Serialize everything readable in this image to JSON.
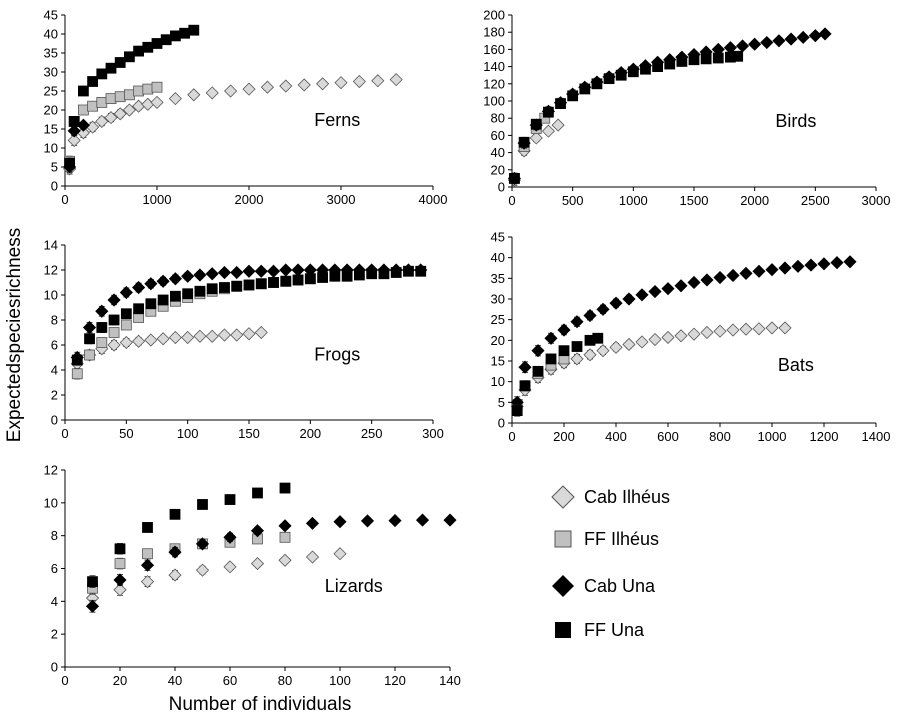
{
  "figure": {
    "ylabel": "Expectedspeciesrichness",
    "xlabel": "Number of individuals"
  },
  "legend": [
    {
      "name": "Cab Ilhéus",
      "marker": "diamond",
      "fill": "#d9d9d9",
      "stroke": "#555555"
    },
    {
      "name": "FF Ilhéus",
      "marker": "square",
      "fill": "#c0c0c0",
      "stroke": "#555555"
    },
    {
      "name": "Cab Una",
      "marker": "diamond",
      "fill": "#000000",
      "stroke": "#000000"
    },
    {
      "name": "FF Una",
      "marker": "square",
      "fill": "#000000",
      "stroke": "#000000"
    }
  ],
  "chart_data": [
    {
      "type": "scatter",
      "panel_label": "Ferns",
      "xlim": [
        0,
        4000
      ],
      "ylim": [
        0,
        45
      ],
      "xticks": [
        0,
        1000,
        2000,
        3000,
        4000
      ],
      "yticks": [
        0,
        5,
        10,
        15,
        20,
        25,
        30,
        35,
        40,
        45
      ],
      "series": [
        {
          "name": "Cab Ilhéus",
          "x": [
            50,
            100,
            200,
            300,
            400,
            500,
            600,
            700,
            800,
            900,
            1000,
            1200,
            1400,
            1600,
            1800,
            2000,
            2200,
            2400,
            2600,
            2800,
            3000,
            3200,
            3400,
            3600
          ],
          "y": [
            4.5,
            12,
            14,
            15.5,
            17,
            18,
            19,
            20,
            21,
            21.5,
            22,
            23,
            24,
            24.5,
            25,
            25.5,
            26,
            26.3,
            26.6,
            26.9,
            27.2,
            27.5,
            27.7,
            28
          ]
        },
        {
          "name": "FF Ilhéus",
          "x": [
            50,
            100,
            200,
            300,
            400,
            500,
            600,
            700,
            800,
            900,
            1000
          ],
          "y": [
            6.5,
            17,
            20,
            21,
            22,
            23,
            23.5,
            24,
            25,
            25.5,
            26
          ]
        },
        {
          "name": "Cab Una",
          "x": [
            50,
            100,
            200
          ],
          "y": [
            5,
            14.5,
            16
          ]
        },
        {
          "name": "FF Una",
          "x": [
            50,
            100,
            200,
            300,
            400,
            500,
            600,
            700,
            800,
            900,
            1000,
            1100,
            1200,
            1300,
            1400
          ],
          "y": [
            6,
            17,
            25,
            27.5,
            29.5,
            31,
            32.5,
            34,
            35.5,
            36.5,
            37.5,
            38.5,
            39.5,
            40.2,
            41
          ]
        }
      ]
    },
    {
      "type": "scatter",
      "panel_label": "Birds",
      "xlim": [
        0,
        3000
      ],
      "ylim": [
        0,
        200
      ],
      "xticks": [
        0,
        500,
        1000,
        1500,
        2000,
        2500,
        3000
      ],
      "yticks": [
        0,
        20,
        40,
        60,
        80,
        100,
        120,
        140,
        160,
        180,
        200
      ],
      "series": [
        {
          "name": "Cab Ilhéus",
          "x": [
            20,
            100,
            200,
            300,
            380
          ],
          "y": [
            8,
            42,
            57,
            65,
            72
          ]
        },
        {
          "name": "FF Ilhéus",
          "x": [
            20,
            100,
            200,
            270
          ],
          "y": [
            10,
            47,
            68,
            80
          ]
        },
        {
          "name": "Cab Una",
          "x": [
            20,
            100,
            200,
            300,
            400,
            500,
            600,
            700,
            800,
            900,
            1000,
            1100,
            1200,
            1300,
            1400,
            1500,
            1600,
            1700,
            1800,
            1900,
            2000,
            2100,
            2200,
            2300,
            2400,
            2500,
            2580
          ],
          "y": [
            10,
            51,
            72,
            88,
            98,
            108,
            116,
            122,
            128,
            133,
            137,
            141,
            145,
            148,
            151,
            154,
            157,
            160,
            162,
            164,
            166,
            168,
            170,
            172,
            174,
            176,
            178
          ]
        },
        {
          "name": "FF Una",
          "x": [
            20,
            100,
            200,
            300,
            400,
            500,
            600,
            700,
            800,
            900,
            1000,
            1100,
            1200,
            1300,
            1400,
            1500,
            1600,
            1700,
            1800,
            1860
          ],
          "y": [
            10,
            52,
            73,
            87,
            97,
            106,
            114,
            120,
            126,
            130,
            134,
            137,
            140,
            143,
            146,
            148,
            149,
            150,
            151,
            152
          ]
        }
      ]
    },
    {
      "type": "scatter",
      "panel_label": "Frogs",
      "xlim": [
        0,
        300
      ],
      "ylim": [
        0,
        14
      ],
      "xticks": [
        0,
        50,
        100,
        150,
        200,
        250,
        300
      ],
      "yticks": [
        0,
        2,
        4,
        6,
        8,
        10,
        12,
        14
      ],
      "series": [
        {
          "name": "Cab Ilhéus",
          "x": [
            10,
            20,
            30,
            40,
            50,
            60,
            70,
            80,
            90,
            100,
            110,
            120,
            130,
            140,
            150,
            160
          ],
          "y": [
            4.5,
            5.2,
            5.7,
            6,
            6.2,
            6.3,
            6.4,
            6.5,
            6.6,
            6.6,
            6.7,
            6.7,
            6.8,
            6.8,
            6.9,
            7
          ]
        },
        {
          "name": "FF Ilhéus",
          "x": [
            10,
            20,
            30,
            40,
            50,
            60,
            70,
            80,
            90,
            100,
            110,
            120,
            130,
            140,
            150,
            160,
            170,
            180,
            190,
            200
          ],
          "y": [
            3.7,
            5.2,
            6.2,
            7,
            7.6,
            8.2,
            8.7,
            9.1,
            9.5,
            9.8,
            10.1,
            10.3,
            10.5,
            10.7,
            10.8,
            10.9,
            11,
            11.1,
            11.2,
            11.3
          ]
        },
        {
          "name": "Cab Una",
          "x": [
            10,
            20,
            30,
            40,
            50,
            60,
            70,
            80,
            90,
            100,
            110,
            120,
            130,
            140,
            150,
            160,
            170,
            180,
            190,
            200,
            210,
            220,
            230,
            240,
            250,
            260,
            270,
            280,
            290
          ],
          "y": [
            5,
            7.4,
            8.7,
            9.6,
            10.2,
            10.6,
            10.9,
            11.1,
            11.3,
            11.5,
            11.6,
            11.7,
            11.8,
            11.8,
            11.9,
            11.9,
            11.9,
            12,
            12,
            12,
            12,
            12,
            12,
            12,
            12,
            12,
            12,
            12,
            12
          ]
        },
        {
          "name": "FF Una",
          "x": [
            10,
            20,
            30,
            40,
            50,
            60,
            70,
            80,
            90,
            100,
            110,
            120,
            130,
            140,
            150,
            160,
            170,
            180,
            190,
            200,
            210,
            220,
            230,
            240,
            250,
            260,
            270,
            280,
            290
          ],
          "y": [
            4.8,
            6.5,
            7.4,
            8,
            8.5,
            8.9,
            9.3,
            9.6,
            9.9,
            10.1,
            10.3,
            10.5,
            10.6,
            10.7,
            10.8,
            10.9,
            11,
            11.1,
            11.2,
            11.3,
            11.4,
            11.5,
            11.5,
            11.6,
            11.7,
            11.7,
            11.8,
            11.9,
            11.9
          ]
        }
      ]
    },
    {
      "type": "scatter",
      "panel_label": "Bats",
      "xlim": [
        0,
        1400
      ],
      "ylim": [
        0,
        45
      ],
      "xticks": [
        0,
        200,
        400,
        600,
        800,
        1000,
        1200,
        1400
      ],
      "yticks": [
        0,
        5,
        10,
        15,
        20,
        25,
        30,
        35,
        40,
        45
      ],
      "series": [
        {
          "name": "Cab Ilhéus",
          "x": [
            20,
            50,
            100,
            150,
            200,
            250,
            300,
            350,
            400,
            450,
            500,
            550,
            600,
            650,
            700,
            750,
            800,
            850,
            900,
            950,
            1000,
            1050
          ],
          "y": [
            4,
            8,
            11,
            13,
            14.5,
            15.5,
            16.5,
            17.5,
            18.3,
            19,
            19.6,
            20.2,
            20.7,
            21.1,
            21.5,
            21.9,
            22.2,
            22.5,
            22.7,
            22.8,
            23,
            23
          ]
        },
        {
          "name": "FF Ilhéus",
          "x": [
            20,
            50,
            100,
            150,
            200
          ],
          "y": [
            4.5,
            9,
            12,
            14,
            15.5
          ]
        },
        {
          "name": "Cab Una",
          "x": [
            20,
            50,
            100,
            150,
            200,
            250,
            300,
            350,
            400,
            450,
            500,
            550,
            600,
            650,
            700,
            750,
            800,
            850,
            900,
            950,
            1000,
            1050,
            1100,
            1150,
            1200,
            1250,
            1300
          ],
          "y": [
            5,
            13.5,
            17.5,
            20.5,
            22.5,
            24.5,
            26,
            27.5,
            29,
            30,
            31,
            31.8,
            32.5,
            33.2,
            34,
            34.6,
            35.2,
            35.7,
            36.2,
            36.7,
            37.1,
            37.5,
            37.9,
            38.2,
            38.5,
            38.8,
            39
          ]
        },
        {
          "name": "FF Una",
          "x": [
            20,
            50,
            100,
            150,
            200,
            250,
            300,
            330
          ],
          "y": [
            3,
            9,
            12.5,
            15.5,
            17.5,
            18.5,
            20,
            20.5
          ]
        }
      ]
    },
    {
      "type": "scatter",
      "panel_label": "Lizards",
      "xlim": [
        0,
        140
      ],
      "ylim": [
        0,
        12
      ],
      "xticks": [
        0,
        20,
        40,
        60,
        80,
        100,
        120,
        140
      ],
      "yticks": [
        0,
        2,
        4,
        6,
        8,
        10,
        12
      ],
      "series": [
        {
          "name": "Cab Ilhéus",
          "x": [
            10,
            20,
            30,
            40,
            50,
            60,
            70,
            80,
            90,
            100
          ],
          "y": [
            4.2,
            4.7,
            5.2,
            5.6,
            5.9,
            6.1,
            6.3,
            6.5,
            6.7,
            6.9
          ]
        },
        {
          "name": "FF Ilhéus",
          "x": [
            10,
            20,
            30,
            40,
            50,
            60,
            70,
            80
          ],
          "y": [
            4.8,
            6.3,
            6.9,
            7.2,
            7.5,
            7.6,
            7.8,
            7.9
          ]
        },
        {
          "name": "Cab Una",
          "x": [
            10,
            20,
            30,
            40,
            50,
            60,
            70,
            80,
            90,
            100,
            110,
            120,
            130,
            140
          ],
          "y": [
            3.7,
            5.3,
            6.2,
            7,
            7.5,
            7.9,
            8.3,
            8.6,
            8.75,
            8.85,
            8.9,
            8.92,
            8.95,
            8.95
          ]
        },
        {
          "name": "FF Una",
          "x": [
            10,
            20,
            30,
            40,
            50,
            60,
            70,
            80
          ],
          "y": [
            5.2,
            7.2,
            8.5,
            9.3,
            9.9,
            10.2,
            10.6,
            10.9
          ]
        }
      ]
    }
  ]
}
